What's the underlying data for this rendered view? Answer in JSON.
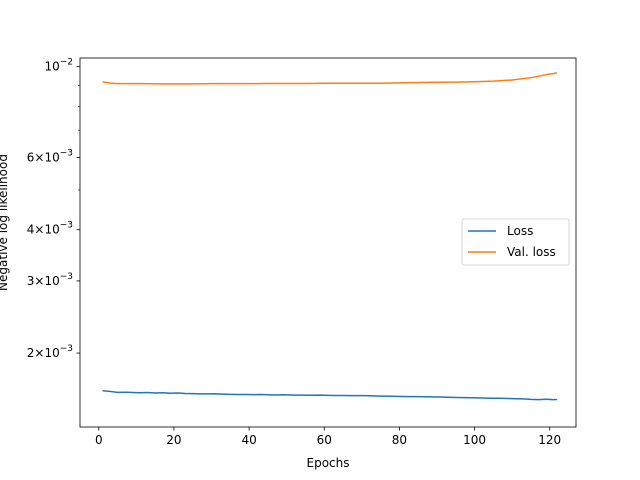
{
  "chart_data": {
    "type": "line",
    "title": "",
    "xlabel": "Epochs",
    "ylabel": "Negative log likelihood",
    "yscale": "log",
    "xlim": [
      -5,
      127
    ],
    "ylim": [
      0.00132,
      0.0105
    ],
    "grid": false,
    "legend_position": "center-right",
    "x_ticks": [
      0,
      20,
      40,
      60,
      80,
      100,
      120
    ],
    "y_ticks": [
      {
        "value": 0.01,
        "base": "10",
        "exp": "−2"
      },
      {
        "value": 0.006,
        "mant": "6",
        "base": "10",
        "exp": "−3"
      },
      {
        "value": 0.004,
        "mant": "4",
        "base": "10",
        "exp": "−3"
      },
      {
        "value": 0.003,
        "mant": "3",
        "base": "10",
        "exp": "−3"
      },
      {
        "value": 0.002,
        "mant": "2",
        "base": "10",
        "exp": "−3"
      }
    ],
    "series": [
      {
        "name": "Loss",
        "color": "#1f77b4",
        "x": [
          1,
          3,
          5,
          7,
          9,
          11,
          13,
          15,
          17,
          19,
          21,
          23,
          25,
          27,
          29,
          31,
          33,
          35,
          37,
          39,
          41,
          43,
          45,
          47,
          49,
          51,
          53,
          55,
          57,
          59,
          61,
          63,
          65,
          67,
          69,
          71,
          73,
          75,
          77,
          79,
          81,
          83,
          85,
          87,
          89,
          91,
          93,
          95,
          97,
          99,
          101,
          103,
          105,
          107,
          109,
          111,
          113,
          115,
          117,
          119,
          121,
          122
        ],
        "y": [
          0.001618,
          0.001612,
          0.001604,
          0.001605,
          0.001603,
          0.0016,
          0.001602,
          0.001598,
          0.0016,
          0.001596,
          0.001598,
          0.001594,
          0.001592,
          0.00159,
          0.00159,
          0.001591,
          0.001588,
          0.001586,
          0.001585,
          0.001584,
          0.001583,
          0.001584,
          0.001582,
          0.00158,
          0.001582,
          0.00158,
          0.001579,
          0.001579,
          0.001578,
          0.001579,
          0.001577,
          0.001576,
          0.001576,
          0.001575,
          0.001574,
          0.001575,
          0.001572,
          0.00157,
          0.00157,
          0.001568,
          0.001567,
          0.001566,
          0.001566,
          0.001565,
          0.001563,
          0.001562,
          0.00156,
          0.001558,
          0.001557,
          0.001556,
          0.001555,
          0.001553,
          0.001552,
          0.001551,
          0.001549,
          0.001547,
          0.001546,
          0.001542,
          0.00154,
          0.001543,
          0.00154,
          0.001541
        ]
      },
      {
        "name": "Val. loss",
        "color": "#ff7f0e",
        "x": [
          1,
          3,
          5,
          8,
          12,
          16,
          20,
          25,
          30,
          35,
          40,
          45,
          50,
          55,
          60,
          65,
          70,
          75,
          80,
          85,
          90,
          95,
          100,
          105,
          110,
          115,
          118,
          120,
          122
        ],
        "y": [
          0.00918,
          0.00912,
          0.00909,
          0.00909,
          0.00909,
          0.00908,
          0.00908,
          0.00908,
          0.00909,
          0.00909,
          0.00909,
          0.0091,
          0.0091,
          0.0091,
          0.00911,
          0.00911,
          0.00911,
          0.00911,
          0.00913,
          0.00915,
          0.00916,
          0.00917,
          0.00919,
          0.00922,
          0.00928,
          0.0094,
          0.00952,
          0.0096,
          0.00965
        ]
      }
    ]
  }
}
